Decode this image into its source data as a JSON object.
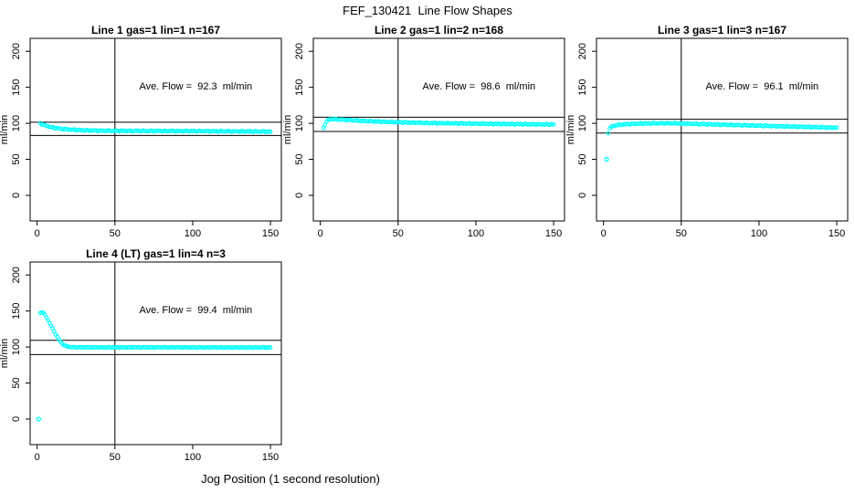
{
  "header": {
    "title": "FEF_130421  Line Flow Shapes"
  },
  "footer": {
    "xlabel": "Jog Position (1 second resolution)"
  },
  "chart_data": [
    {
      "type": "scatter",
      "title": "Line 1 gas=1 lin=1 n=167",
      "ylabel": "ml/min",
      "annotation": "Ave. Flow =  92.3  ml/min",
      "ave_flow_ml_min": 92.3,
      "point_color": "#00ffff",
      "axis_color": "#000000",
      "x_ticks": [
        0,
        50,
        100,
        150
      ],
      "y_ticks": [
        0,
        50,
        100,
        150,
        200
      ],
      "xlim": [
        -4.5,
        157
      ],
      "ylim": [
        -35.5,
        218
      ],
      "vline_x": 50,
      "ref_lines_y": [
        101.5,
        83.1
      ],
      "annotation_pos": [
        102,
        152
      ],
      "jitter": 0.9,
      "outliers": [],
      "trace_keypoints": [
        [
          2,
          100
        ],
        [
          3,
          99
        ],
        [
          5,
          97
        ],
        [
          7,
          95.8
        ],
        [
          9,
          94.8
        ],
        [
          12,
          93.5
        ],
        [
          15,
          92.5
        ],
        [
          20,
          91.5
        ],
        [
          25,
          90.8
        ],
        [
          32,
          90.2
        ],
        [
          40,
          89.8
        ],
        [
          55,
          89.5
        ],
        [
          70,
          89.4
        ],
        [
          85,
          89.3
        ],
        [
          100,
          89.2
        ],
        [
          115,
          89
        ],
        [
          130,
          88.8
        ],
        [
          150,
          88.5
        ]
      ]
    },
    {
      "type": "scatter",
      "title": "Line 2 gas=1 lin=2 n=168",
      "ylabel": "ml/min",
      "annotation": "Ave. Flow =  98.6  ml/min",
      "ave_flow_ml_min": 98.6,
      "point_color": "#00ffff",
      "axis_color": "#000000",
      "x_ticks": [
        0,
        50,
        100,
        150
      ],
      "y_ticks": [
        0,
        50,
        100,
        150,
        200
      ],
      "xlim": [
        -4.5,
        157
      ],
      "ylim": [
        -35.5,
        218
      ],
      "vline_x": 50,
      "ref_lines_y": [
        108.5,
        88.7
      ],
      "annotation_pos": [
        102,
        152
      ],
      "jitter": 0.8,
      "outliers": [],
      "trace_keypoints": [
        [
          2,
          93
        ],
        [
          3,
          99
        ],
        [
          4,
          102.5
        ],
        [
          5,
          104.5
        ],
        [
          6,
          105.5
        ],
        [
          8,
          106
        ],
        [
          11,
          105.5
        ],
        [
          15,
          105
        ],
        [
          20,
          104.3
        ],
        [
          26,
          103.5
        ],
        [
          33,
          102.8
        ],
        [
          40,
          102.2
        ],
        [
          50,
          101.5
        ],
        [
          62,
          100.8
        ],
        [
          75,
          100.2
        ],
        [
          90,
          99.8
        ],
        [
          105,
          99.4
        ],
        [
          120,
          99
        ],
        [
          135,
          98.7
        ],
        [
          150,
          98.4
        ]
      ]
    },
    {
      "type": "scatter",
      "title": "Line 3 gas=1 lin=3 n=167",
      "ylabel": "ml/min",
      "annotation": "Ave. Flow =  96.1  ml/min",
      "ave_flow_ml_min": 96.1,
      "point_color": "#00ffff",
      "axis_color": "#000000",
      "x_ticks": [
        0,
        50,
        100,
        150
      ],
      "y_ticks": [
        0,
        50,
        100,
        150,
        200
      ],
      "xlim": [
        -4.5,
        157
      ],
      "ylim": [
        -35.5,
        218
      ],
      "vline_x": 50,
      "ref_lines_y": [
        105.7,
        86.5
      ],
      "annotation_pos": [
        102,
        152
      ],
      "jitter": 0.8,
      "outliers": [
        [
          2,
          50
        ]
      ],
      "trace_keypoints": [
        [
          3,
          87
        ],
        [
          4,
          93
        ],
        [
          5,
          95
        ],
        [
          6,
          96
        ],
        [
          8,
          97.2
        ],
        [
          10,
          97.8
        ],
        [
          13,
          98.5
        ],
        [
          17,
          99
        ],
        [
          22,
          99.5
        ],
        [
          28,
          99.8
        ],
        [
          36,
          100
        ],
        [
          45,
          100
        ],
        [
          55,
          99.4
        ],
        [
          65,
          98.8
        ],
        [
          78,
          98
        ],
        [
          90,
          97.3
        ],
        [
          102,
          96.6
        ],
        [
          115,
          95.8
        ],
        [
          128,
          95.1
        ],
        [
          140,
          94.5
        ],
        [
          150,
          94
        ]
      ]
    },
    {
      "type": "scatter",
      "title": "Line 4 (LT) gas=1 lin=4 n=3",
      "ylabel": "ml/min",
      "annotation": "Ave. Flow =  99.4  ml/min",
      "ave_flow_ml_min": 99.4,
      "point_color": "#00ffff",
      "axis_color": "#000000",
      "x_ticks": [
        0,
        50,
        100,
        150
      ],
      "y_ticks": [
        0,
        50,
        100,
        150,
        200
      ],
      "xlim": [
        -4.5,
        157
      ],
      "ylim": [
        -35.5,
        218
      ],
      "vline_x": 50,
      "ref_lines_y": [
        109.3,
        89.5
      ],
      "annotation_pos": [
        102,
        152
      ],
      "jitter": 0.5,
      "outliers": [
        [
          1,
          0
        ]
      ],
      "trace_keypoints": [
        [
          2,
          147
        ],
        [
          3,
          148.5
        ],
        [
          4,
          147.5
        ],
        [
          5,
          144.5
        ],
        [
          6,
          141
        ],
        [
          7,
          137.5
        ],
        [
          8,
          133.5
        ],
        [
          9,
          129.5
        ],
        [
          10,
          125.5
        ],
        [
          11,
          121.5
        ],
        [
          12,
          117.5
        ],
        [
          13,
          114
        ],
        [
          14,
          110.5
        ],
        [
          15,
          107.5
        ],
        [
          16,
          105
        ],
        [
          17,
          103
        ],
        [
          18,
          101.8
        ],
        [
          19,
          101
        ],
        [
          20,
          100.4
        ],
        [
          22,
          99.9
        ],
        [
          26,
          99.6
        ],
        [
          32,
          99.5
        ],
        [
          45,
          99.5
        ],
        [
          60,
          99.5
        ],
        [
          80,
          99.5
        ],
        [
          100,
          99.4
        ],
        [
          120,
          99.4
        ],
        [
          150,
          99.3
        ]
      ]
    }
  ]
}
